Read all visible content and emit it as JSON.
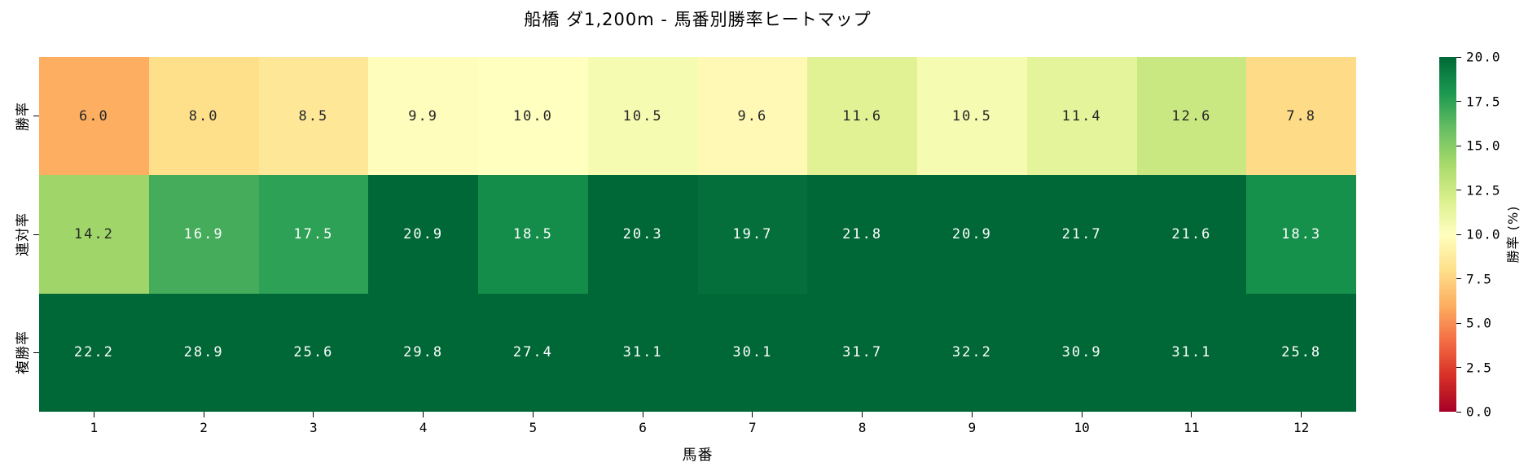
{
  "title": "船橋 ダ1,200m - 馬番別勝率ヒートマップ",
  "chart_data": {
    "type": "heatmap",
    "title": "船橋 ダ1,200m - 馬番別勝率ヒートマップ",
    "xlabel": "馬番",
    "ylabel": "",
    "categories": [
      "1",
      "2",
      "3",
      "4",
      "5",
      "6",
      "7",
      "8",
      "9",
      "10",
      "11",
      "12"
    ],
    "rows": [
      {
        "name": "勝率",
        "values": [
          6.0,
          8.0,
          8.5,
          9.9,
          10.0,
          10.5,
          9.6,
          11.6,
          10.5,
          11.4,
          12.6,
          7.8
        ]
      },
      {
        "name": "連対率",
        "values": [
          14.2,
          16.9,
          17.5,
          20.9,
          18.5,
          20.3,
          19.7,
          21.8,
          20.9,
          21.7,
          21.6,
          18.3
        ]
      },
      {
        "name": "複勝率",
        "values": [
          22.2,
          28.9,
          25.6,
          29.8,
          27.4,
          31.1,
          30.1,
          31.7,
          32.2,
          30.9,
          31.1,
          25.8
        ]
      }
    ],
    "value_format_decimals": 1,
    "colorbar": {
      "label": "勝率 (%)",
      "ticks": [
        "20.0",
        "17.5",
        "15.0",
        "12.5",
        "10.0",
        "7.5",
        "5.0",
        "2.5",
        "0.0"
      ],
      "vmin": 0.0,
      "vmax": 20.0
    },
    "colormap": {
      "name": "RdYlGn",
      "stops": [
        "#a50026",
        "#d73027",
        "#f46d43",
        "#fdae61",
        "#fee08b",
        "#ffffbf",
        "#d9ef8b",
        "#a6d96a",
        "#66bd63",
        "#1a9850",
        "#006837"
      ]
    },
    "annotation_text_colors": {
      "dark": "#262626",
      "light": "#ffffff"
    },
    "grid": false,
    "legend_position": "right-colorbar",
    "background": "#ffffff"
  }
}
